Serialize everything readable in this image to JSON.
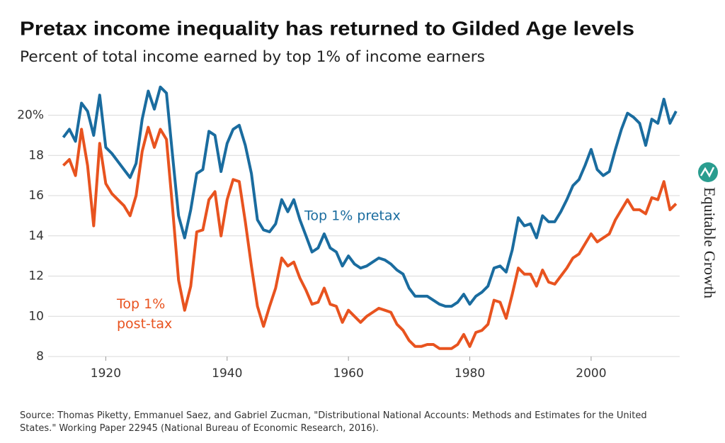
{
  "chart_data": {
    "type": "line",
    "title": "Pretax income inequality has returned to Gilded Age levels",
    "subtitle": "Percent of total income earned by top 1% of income earners",
    "source": "Source: Thomas Piketty, Emmanuel Saez, and Gabriel Zucman, \"Distributional National Accounts: Methods and Estimates for the United States.\" Working Paper 22945 (National Bureau of Economic Research, 2016).",
    "brand": "Equitable Growth",
    "x": [
      1913,
      1914,
      1915,
      1916,
      1917,
      1918,
      1919,
      1920,
      1921,
      1922,
      1923,
      1924,
      1925,
      1926,
      1927,
      1928,
      1929,
      1930,
      1931,
      1932,
      1933,
      1934,
      1935,
      1936,
      1937,
      1938,
      1939,
      1940,
      1941,
      1942,
      1943,
      1944,
      1945,
      1946,
      1947,
      1948,
      1949,
      1950,
      1951,
      1952,
      1953,
      1954,
      1955,
      1956,
      1957,
      1958,
      1959,
      1960,
      1961,
      1962,
      1963,
      1964,
      1965,
      1966,
      1967,
      1968,
      1969,
      1970,
      1971,
      1972,
      1973,
      1974,
      1975,
      1976,
      1977,
      1978,
      1979,
      1980,
      1981,
      1982,
      1983,
      1984,
      1985,
      1986,
      1987,
      1988,
      1989,
      1990,
      1991,
      1992,
      1993,
      1994,
      1995,
      1996,
      1997,
      1998,
      1999,
      2000,
      2001,
      2002,
      2003,
      2004,
      2005,
      2006,
      2007,
      2008,
      2009,
      2010,
      2011,
      2012,
      2013,
      2014
    ],
    "series": [
      {
        "name": "Top 1% pretax",
        "color": "#1a6c9f",
        "values": [
          18.9,
          19.3,
          18.7,
          20.6,
          20.2,
          19.0,
          21.0,
          18.4,
          18.1,
          17.7,
          17.3,
          16.9,
          17.6,
          19.8,
          21.2,
          20.3,
          21.4,
          21.1,
          18.0,
          15.0,
          13.9,
          15.3,
          17.1,
          17.3,
          19.2,
          19.0,
          17.2,
          18.6,
          19.3,
          19.5,
          18.5,
          17.1,
          14.8,
          14.3,
          14.2,
          14.6,
          15.8,
          15.2,
          15.8,
          14.8,
          14.0,
          13.2,
          13.4,
          14.1,
          13.4,
          13.2,
          12.5,
          13.0,
          12.6,
          12.4,
          12.5,
          12.7,
          12.9,
          12.8,
          12.6,
          12.3,
          12.1,
          11.4,
          11.0,
          11.0,
          11.0,
          10.8,
          10.6,
          10.5,
          10.5,
          10.7,
          11.1,
          10.6,
          11.0,
          11.2,
          11.5,
          12.4,
          12.5,
          12.2,
          13.3,
          14.9,
          14.5,
          14.6,
          13.9,
          15.0,
          14.7,
          14.7,
          15.2,
          15.8,
          16.5,
          16.8,
          17.5,
          18.3,
          17.3,
          17.0,
          17.2,
          18.3,
          19.3,
          20.1,
          19.9,
          19.6,
          18.5,
          19.8,
          19.6,
          20.8,
          19.6,
          20.2
        ]
      },
      {
        "name": "Top 1% post-tax",
        "color": "#e8531f",
        "values": [
          17.5,
          17.8,
          17.0,
          19.3,
          17.5,
          14.5,
          18.6,
          16.6,
          16.1,
          15.8,
          15.5,
          15.0,
          16.0,
          18.2,
          19.4,
          18.4,
          19.3,
          18.8,
          15.4,
          11.8,
          10.3,
          11.5,
          14.2,
          14.3,
          15.8,
          16.2,
          14.0,
          15.8,
          16.8,
          16.7,
          14.7,
          12.5,
          10.5,
          9.5,
          10.5,
          11.4,
          12.9,
          12.5,
          12.7,
          11.9,
          11.3,
          10.6,
          10.7,
          11.4,
          10.6,
          10.5,
          9.7,
          10.3,
          10.0,
          9.7,
          10.0,
          10.2,
          10.4,
          10.3,
          10.2,
          9.6,
          9.3,
          8.8,
          8.5,
          8.5,
          8.6,
          8.6,
          8.4,
          8.4,
          8.4,
          8.6,
          9.1,
          8.5,
          9.2,
          9.3,
          9.6,
          10.8,
          10.7,
          9.9,
          11.1,
          12.4,
          12.1,
          12.1,
          11.5,
          12.3,
          11.7,
          11.6,
          12.0,
          12.4,
          12.9,
          13.1,
          13.6,
          14.1,
          13.7,
          13.9,
          14.1,
          14.8,
          15.3,
          15.8,
          15.3,
          15.3,
          15.1,
          15.9,
          15.8,
          16.7,
          15.3,
          15.6
        ]
      }
    ],
    "xlim": [
      1910.5,
      2014.6
    ],
    "xticks": [
      1920,
      1940,
      1960,
      1980,
      2000
    ],
    "ylim": [
      8,
      21.5
    ],
    "yticks": [
      8,
      10,
      12,
      14,
      16,
      18,
      {
        "value": 20,
        "label": "20%"
      }
    ],
    "grid": true
  }
}
